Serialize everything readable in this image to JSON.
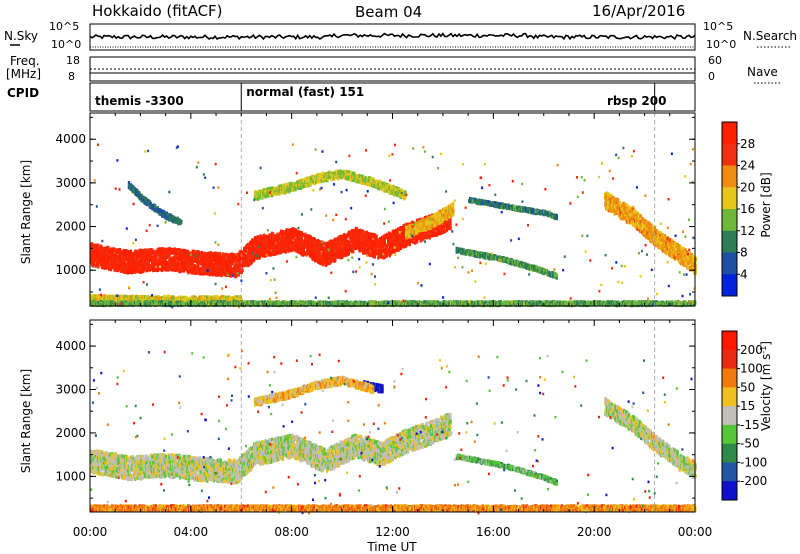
{
  "header": {
    "station": "Hokkaido (fitACF)",
    "beam": "Beam 04",
    "date": "16/Apr/2016"
  },
  "strip": {
    "nsky_label": "N.Sky",
    "nsky_ticks": [
      "10^5",
      "10^0"
    ],
    "nsky_right_ticks": [
      "10^5",
      "10^0"
    ],
    "nsearch_label": "N.Search",
    "freq_label_line1": "Freq.",
    "freq_label_line2": "[MHz]",
    "freq_ticks": [
      "18",
      "8"
    ],
    "nave_ticks": [
      "60",
      "0"
    ],
    "nave_label": "Nave",
    "cpid_label": "CPID",
    "modes": [
      {
        "name": "themis -3300",
        "start_hour": 0,
        "end_hour": 6
      },
      {
        "name": "normal (fast) 151",
        "start_hour": 6,
        "end_hour": 22.4
      },
      {
        "name": "rbsp 200",
        "start_hour": 22.4,
        "end_hour": 24
      }
    ]
  },
  "chart_data": [
    {
      "type": "heatmap",
      "name": "Power",
      "ylabel": "Slant Range [km]",
      "ylim": [
        180,
        4600
      ],
      "yticks": [
        "1000",
        "2000",
        "3000",
        "4000"
      ],
      "xlim": [
        0,
        24
      ],
      "colorbar_label": "Power [dB]",
      "colorbar_ticks": [
        "4",
        "8",
        "12",
        "16",
        "20",
        "24",
        "28"
      ],
      "colors": [
        "#0022dd",
        "#1f4fa3",
        "#2e7d54",
        "#6fb83a",
        "#e6c619",
        "#f08b12",
        "#f03010",
        "#ff2000"
      ],
      "echo_bands": [
        {
          "x": [
            0,
            1.5,
            3,
            4.5,
            5.8,
            6.5,
            8,
            9.3,
            10.5,
            11.5,
            12.5,
            13.5,
            14.3
          ],
          "y": [
            1350,
            1180,
            1250,
            1150,
            1100,
            1500,
            1700,
            1350,
            1700,
            1500,
            1800,
            2000,
            2200
          ],
          "width": 500,
          "level": 0.9
        },
        {
          "x": [
            0,
            2,
            4,
            6
          ],
          "y": [
            350,
            330,
            320,
            330
          ],
          "width": 120,
          "level": 0.55
        },
        {
          "x": [
            6.5,
            8,
            9,
            10,
            11.2,
            12.5
          ],
          "y": [
            2700,
            2900,
            3100,
            3200,
            3000,
            2700
          ],
          "width": 180,
          "level": 0.5
        },
        {
          "x": [
            12.5,
            13.5,
            14.4
          ],
          "y": [
            1850,
            2100,
            2400
          ],
          "width": 260,
          "level": 0.6
        },
        {
          "x": [
            15,
            16.5,
            18,
            18.5
          ],
          "y": [
            2600,
            2450,
            2300,
            2200
          ],
          "width": 80,
          "level": 0.3
        },
        {
          "x": [
            14.5,
            16.3,
            17.8,
            18.5
          ],
          "y": [
            1450,
            1250,
            1000,
            850
          ],
          "width": 90,
          "level": 0.35
        },
        {
          "x": [
            20.4,
            21.5,
            22.5,
            24
          ],
          "y": [
            2600,
            2200,
            1700,
            1100
          ],
          "width": 380,
          "level": 0.65
        },
        {
          "x": [
            0,
            6,
            12,
            18,
            24
          ],
          "y": [
            230,
            230,
            230,
            230,
            230
          ],
          "width": 80,
          "level": 0.4
        },
        {
          "x": [
            1.5,
            2,
            2.8,
            3.3,
            3.6
          ],
          "y": [
            2950,
            2650,
            2300,
            2150,
            2100
          ],
          "width": 120,
          "level": 0.25
        }
      ]
    },
    {
      "type": "heatmap",
      "name": "Velocity",
      "ylabel": "Slant Range [km]",
      "xlabel": "Time UT",
      "ylim": [
        180,
        4600
      ],
      "yticks": [
        "1000",
        "2000",
        "3000",
        "4000"
      ],
      "xlim": [
        0,
        24
      ],
      "xticks": [
        "00:00",
        "04:00",
        "08:00",
        "12:00",
        "16:00",
        "20:00",
        "00:00"
      ],
      "colorbar_label": "Velocity [m s-1]",
      "colorbar_ticks": [
        "200",
        "100",
        "50",
        "15",
        "-15",
        "-50",
        "-100",
        "-200"
      ],
      "colors": [
        "#1010cc",
        "#1f55a3",
        "#2f8a4a",
        "#55c53a",
        "#c0bfb8",
        "#f0c020",
        "#f07a10",
        "#e82a10",
        "#ff1800"
      ],
      "echo_bands": [
        {
          "x": [
            0,
            1.5,
            3,
            4.5,
            5.8,
            6.5,
            8,
            9.3,
            10.5,
            11.5,
            12.5,
            13.5,
            14.3
          ],
          "y": [
            1350,
            1180,
            1250,
            1150,
            1100,
            1500,
            1700,
            1350,
            1700,
            1500,
            1800,
            2000,
            2200
          ],
          "width": 520,
          "level": 0.5
        },
        {
          "x": [
            20.4,
            21.5,
            22.5,
            24
          ],
          "y": [
            2600,
            2200,
            1700,
            1100
          ],
          "width": 360,
          "level": 0.5
        },
        {
          "x": [
            14.5,
            16.3,
            17.8,
            18.5
          ],
          "y": [
            1450,
            1250,
            1000,
            850
          ],
          "width": 80,
          "level": 0.38
        },
        {
          "x": [
            10.8,
            11.2,
            11.6
          ],
          "y": [
            3100,
            3050,
            3000
          ],
          "width": 150,
          "level": 0.05
        },
        {
          "x": [
            6.5,
            8,
            9,
            10,
            11.2
          ],
          "y": [
            2700,
            2900,
            3100,
            3200,
            3000
          ],
          "width": 160,
          "level": 0.62
        },
        {
          "x": [
            0,
            6,
            12,
            18,
            24
          ],
          "y": [
            260,
            260,
            260,
            260,
            260
          ],
          "width": 110,
          "level": 0.7
        }
      ]
    }
  ]
}
